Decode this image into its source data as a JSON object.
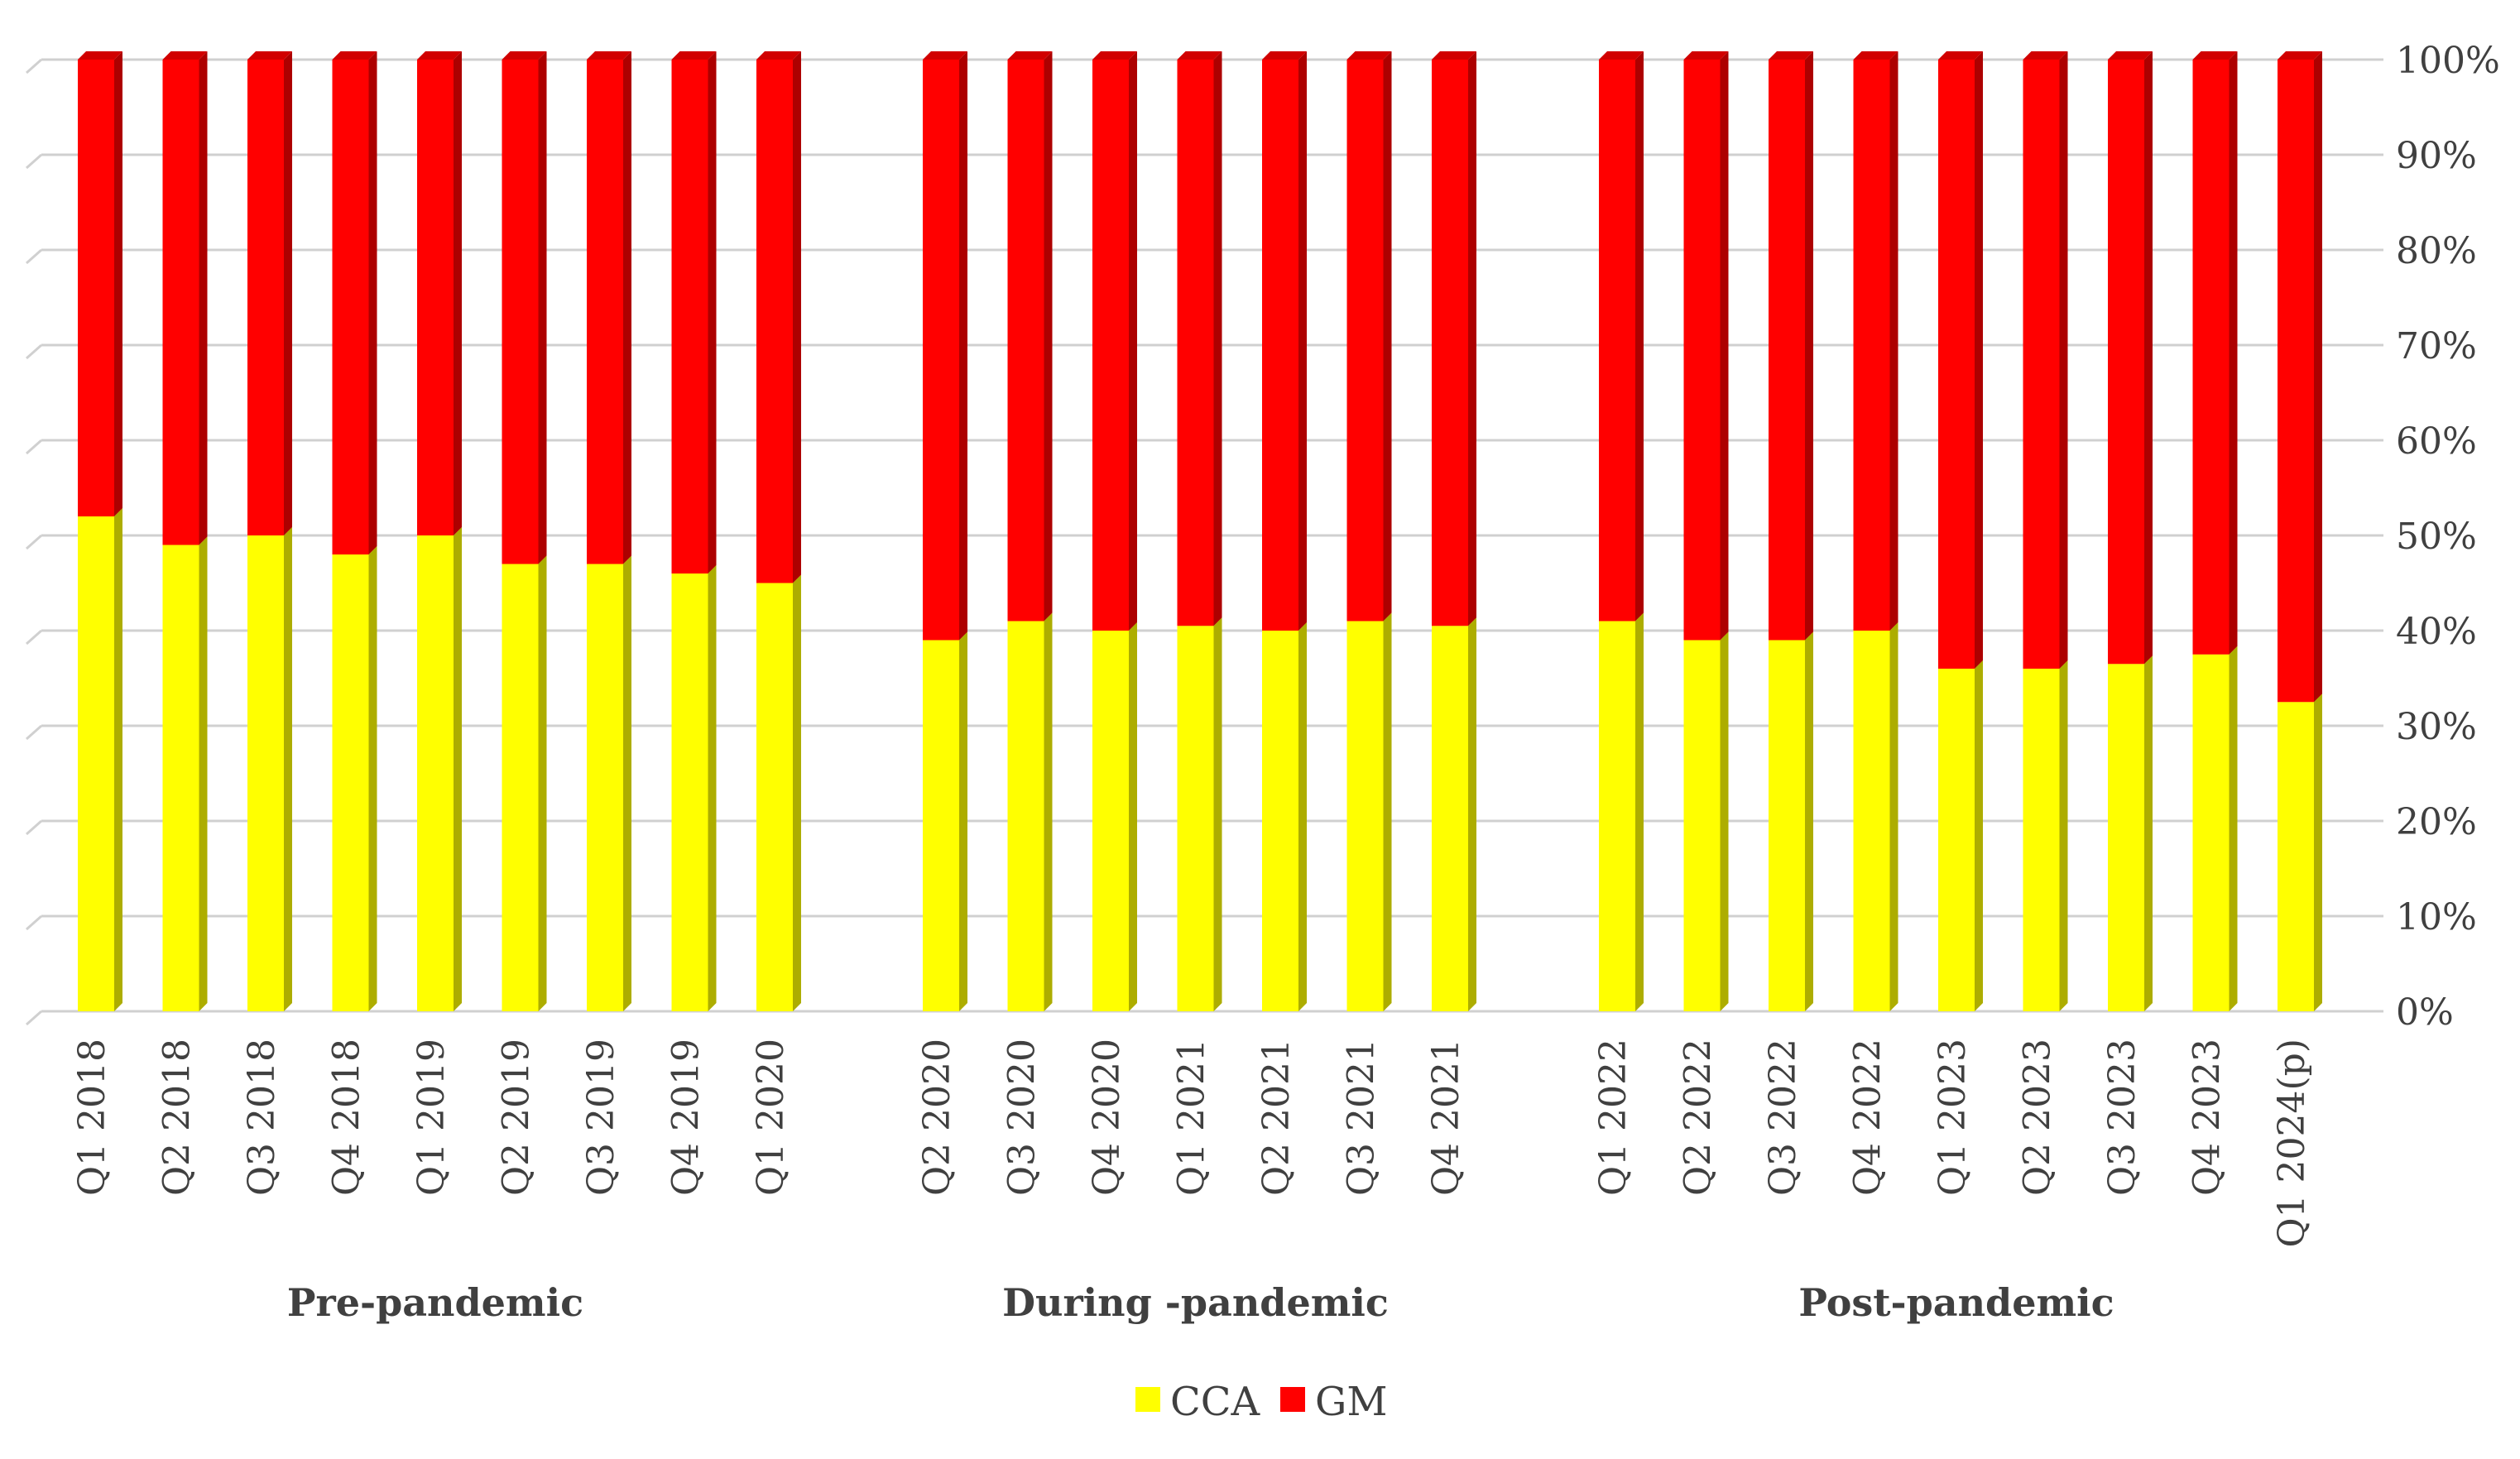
{
  "chart_data": {
    "type": "bar",
    "stacked": true,
    "percent": true,
    "categories": [
      "Q1 2018",
      "Q2 2018",
      "Q3 2018",
      "Q4 2018",
      "Q1 2019",
      "Q2 2019",
      "Q3 2019",
      "Q4 2019",
      "Q1 2020",
      "Q2 2020",
      "Q3 2020",
      "Q4 2020",
      "Q1 2021",
      "Q2 2021",
      "Q3 2021",
      "Q4 2021",
      "Q1 2022",
      "Q2 2022",
      "Q3 2022",
      "Q4 2022",
      "Q1 2023",
      "Q2 2023",
      "Q3 2023",
      "Q4 2023",
      "Q1 2024(p)"
    ],
    "groups": [
      {
        "label": "Pre-pandemic",
        "count": 9
      },
      {
        "label": "During -pandemic",
        "count": 7
      },
      {
        "label": "Post-pandemic",
        "count": 9
      }
    ],
    "series": [
      {
        "name": "CCA",
        "color": "#FFFF00",
        "values": [
          52,
          49,
          50,
          48,
          50,
          47,
          47,
          46,
          45,
          39,
          41,
          40,
          40.5,
          40,
          41,
          40.5,
          41,
          39,
          39,
          40,
          36,
          36,
          36.5,
          37.5,
          32.5
        ]
      },
      {
        "name": "GM",
        "color": "#FF0000",
        "values": [
          48,
          51,
          50,
          52,
          50,
          53,
          53,
          54,
          55,
          61,
          59,
          60,
          59.5,
          60,
          59,
          59.5,
          59,
          61,
          61,
          60,
          64,
          64,
          63.5,
          62.5,
          67.5
        ]
      }
    ],
    "yaxis": {
      "position": "right",
      "ticks": [
        "0%",
        "10%",
        "20%",
        "30%",
        "40%",
        "50%",
        "60%",
        "70%",
        "80%",
        "90%",
        "100%"
      ],
      "ylim": [
        0,
        100
      ]
    },
    "grid": true,
    "legend": "bottom-center"
  }
}
